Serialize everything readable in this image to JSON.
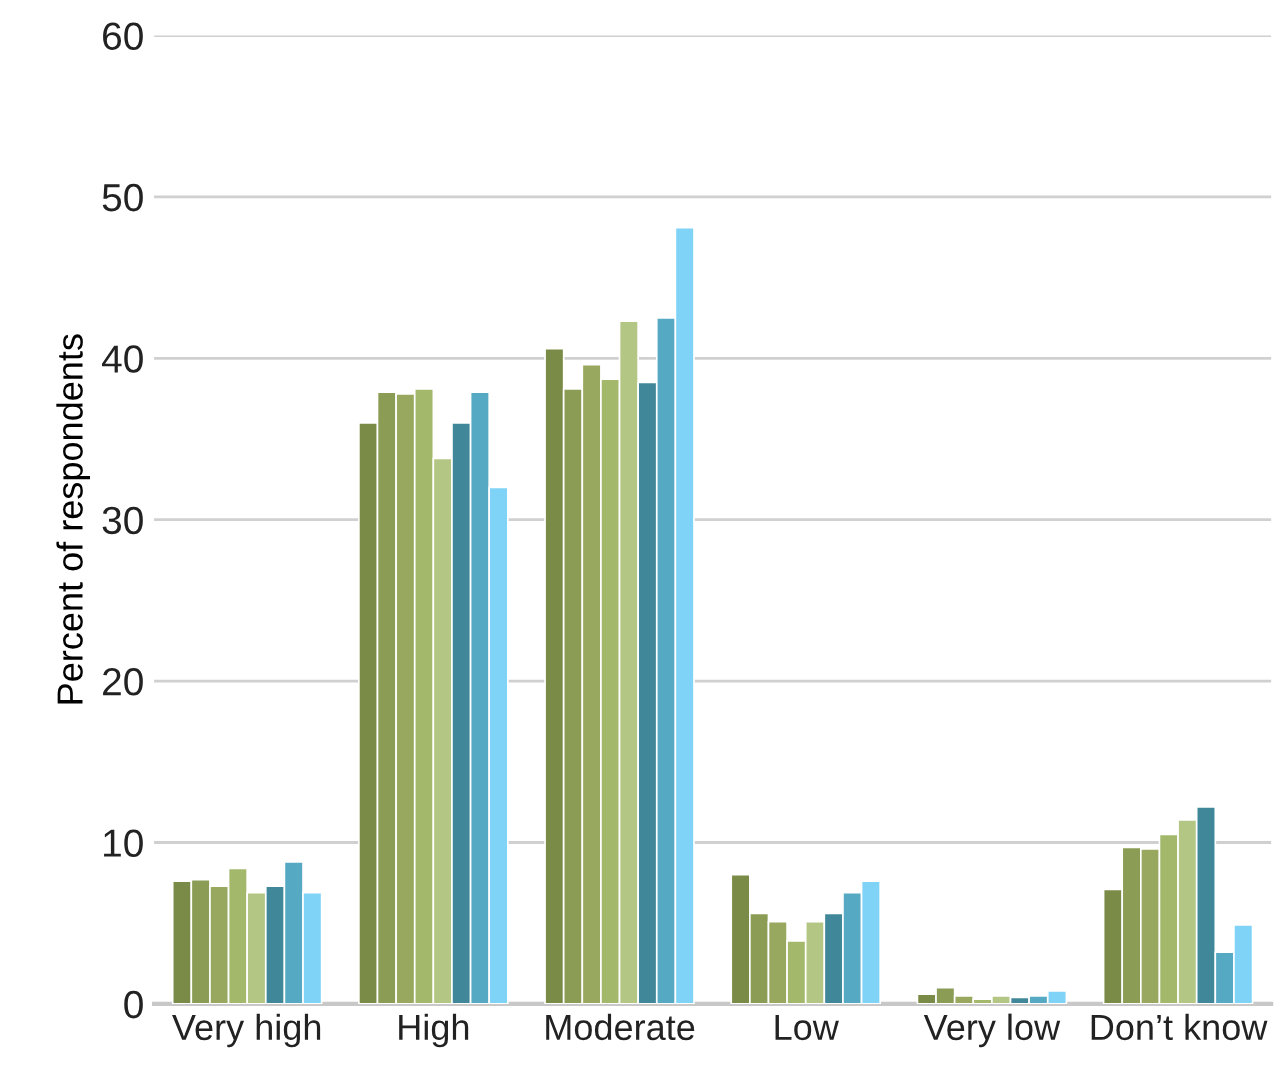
{
  "chart_data": {
    "type": "bar",
    "ylabel": "Percent of respondents",
    "categories": [
      "Very high",
      "High",
      "Moderate",
      "Low",
      "Very low",
      "Don’t know"
    ],
    "series": [
      {
        "color": "#7a8b47",
        "values": [
          7.6,
          36.0,
          40.6,
          8.0,
          0.6,
          7.1
        ]
      },
      {
        "color": "#8b9c55",
        "values": [
          7.7,
          37.9,
          38.1,
          5.6,
          1.0,
          9.7
        ]
      },
      {
        "color": "#98a95f",
        "values": [
          7.3,
          37.8,
          39.6,
          5.1,
          0.5,
          9.6
        ]
      },
      {
        "color": "#a3b86a",
        "values": [
          8.4,
          38.1,
          38.7,
          3.9,
          0.3,
          10.5
        ]
      },
      {
        "color": "#b4c684",
        "values": [
          6.9,
          33.8,
          42.3,
          5.1,
          0.5,
          11.4
        ]
      },
      {
        "color": "#408799",
        "values": [
          7.3,
          36.0,
          38.5,
          5.6,
          0.4,
          12.2
        ]
      },
      {
        "color": "#55a9c2",
        "values": [
          8.8,
          37.9,
          42.5,
          6.9,
          0.5,
          3.2
        ]
      },
      {
        "color": "#7ed3f7",
        "values": [
          6.9,
          32.0,
          48.1,
          7.6,
          0.8,
          4.9
        ]
      }
    ],
    "ylim": [
      0,
      60
    ],
    "yticks": [
      0,
      10,
      20,
      30,
      40,
      50,
      60
    ],
    "grid": "y"
  }
}
